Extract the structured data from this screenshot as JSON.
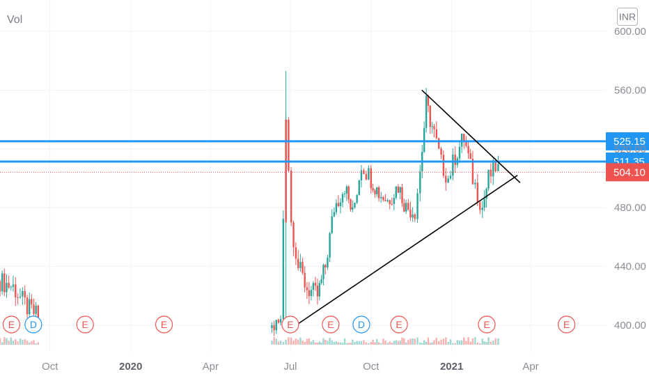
{
  "header": {
    "vol_label": "Vol",
    "currency": "INR"
  },
  "colors": {
    "up": "#26a69a",
    "down": "#ef5350",
    "level_line": "#2196f3",
    "last_price": "#ef5350",
    "trendline": "#000000",
    "grid": "#f0f3fa"
  },
  "chart_data": {
    "type": "candlestick",
    "x_axis": {
      "start": "2019-08",
      "end": "2021-05",
      "ticks": [
        {
          "label": "Oct",
          "date": "2019-10-01",
          "bold": false
        },
        {
          "label": "2020",
          "date": "2020-01-01",
          "bold": true
        },
        {
          "label": "Apr",
          "date": "2020-04-01",
          "bold": false
        },
        {
          "label": "Jul",
          "date": "2020-07-01",
          "bold": false
        },
        {
          "label": "Oct",
          "date": "2020-10-01",
          "bold": false
        },
        {
          "label": "2021",
          "date": "2021-01-01",
          "bold": true
        },
        {
          "label": "Apr",
          "date": "2021-04-01",
          "bold": false
        }
      ]
    },
    "y_axis": {
      "range": [
        385,
        610
      ],
      "ticks": [
        "600.00",
        "560.00",
        "520.00",
        "480.00",
        "440.00",
        "400.00"
      ],
      "tick_values": [
        600,
        560,
        520,
        480,
        440,
        400
      ]
    },
    "levels": [
      {
        "label": "525.15",
        "value": 525.15
      },
      {
        "label": "511.35",
        "value": 511.35
      }
    ],
    "last_price": {
      "label": "504.10",
      "value": 504.1
    },
    "trendlines": [
      {
        "from": {
          "date": "2020-07-10",
          "value": 401
        },
        "to": {
          "date": "2021-03-17",
          "value": 502
        }
      },
      {
        "from": {
          "date": "2020-11-28",
          "value": 560
        },
        "to": {
          "date": "2021-03-20",
          "value": 497
        }
      }
    ],
    "events": [
      {
        "type": "E",
        "date": "2019-08-18"
      },
      {
        "type": "D",
        "date": "2019-09-12"
      },
      {
        "type": "E",
        "date": "2019-11-10"
      },
      {
        "type": "E",
        "date": "2020-02-08"
      },
      {
        "type": "E",
        "date": "2020-07-01"
      },
      {
        "type": "E",
        "date": "2020-08-16"
      },
      {
        "type": "D",
        "date": "2020-09-20"
      },
      {
        "type": "E",
        "date": "2020-11-02"
      },
      {
        "type": "E",
        "date": "2021-02-10"
      },
      {
        "type": "E",
        "date": "2021-05-12"
      }
    ],
    "series": [
      {
        "date": "2019-08-05",
        "close": 430
      },
      {
        "date": "2019-08-20",
        "close": 426
      },
      {
        "date": "2019-09-05",
        "close": 412
      },
      {
        "date": "2019-09-20",
        "close": 405
      },
      {
        "date": "2020-06-10",
        "close": 398
      },
      {
        "date": "2020-06-20",
        "close": 402
      },
      {
        "date": "2020-06-26",
        "close": 545
      },
      {
        "date": "2020-07-02",
        "close": 470
      },
      {
        "date": "2020-07-10",
        "close": 440
      },
      {
        "date": "2020-07-20",
        "close": 425
      },
      {
        "date": "2020-08-01",
        "close": 420
      },
      {
        "date": "2020-08-10",
        "close": 440
      },
      {
        "date": "2020-08-20",
        "close": 480
      },
      {
        "date": "2020-09-01",
        "close": 495
      },
      {
        "date": "2020-09-10",
        "close": 475
      },
      {
        "date": "2020-09-20",
        "close": 510
      },
      {
        "date": "2020-10-01",
        "close": 500
      },
      {
        "date": "2020-10-10",
        "close": 490
      },
      {
        "date": "2020-10-20",
        "close": 485
      },
      {
        "date": "2020-11-01",
        "close": 495
      },
      {
        "date": "2020-11-10",
        "close": 480
      },
      {
        "date": "2020-11-20",
        "close": 478
      },
      {
        "date": "2020-11-26",
        "close": 505
      },
      {
        "date": "2020-12-03",
        "close": 550
      },
      {
        "date": "2020-12-12",
        "close": 530
      },
      {
        "date": "2020-12-20",
        "close": 510
      },
      {
        "date": "2020-12-28",
        "close": 500
      },
      {
        "date": "2021-01-05",
        "close": 515
      },
      {
        "date": "2021-01-15",
        "close": 528
      },
      {
        "date": "2021-01-25",
        "close": 500
      },
      {
        "date": "2021-02-05",
        "close": 480
      },
      {
        "date": "2021-02-12",
        "close": 500
      },
      {
        "date": "2021-02-20",
        "close": 508
      },
      {
        "date": "2021-02-26",
        "close": 504.1
      }
    ]
  }
}
